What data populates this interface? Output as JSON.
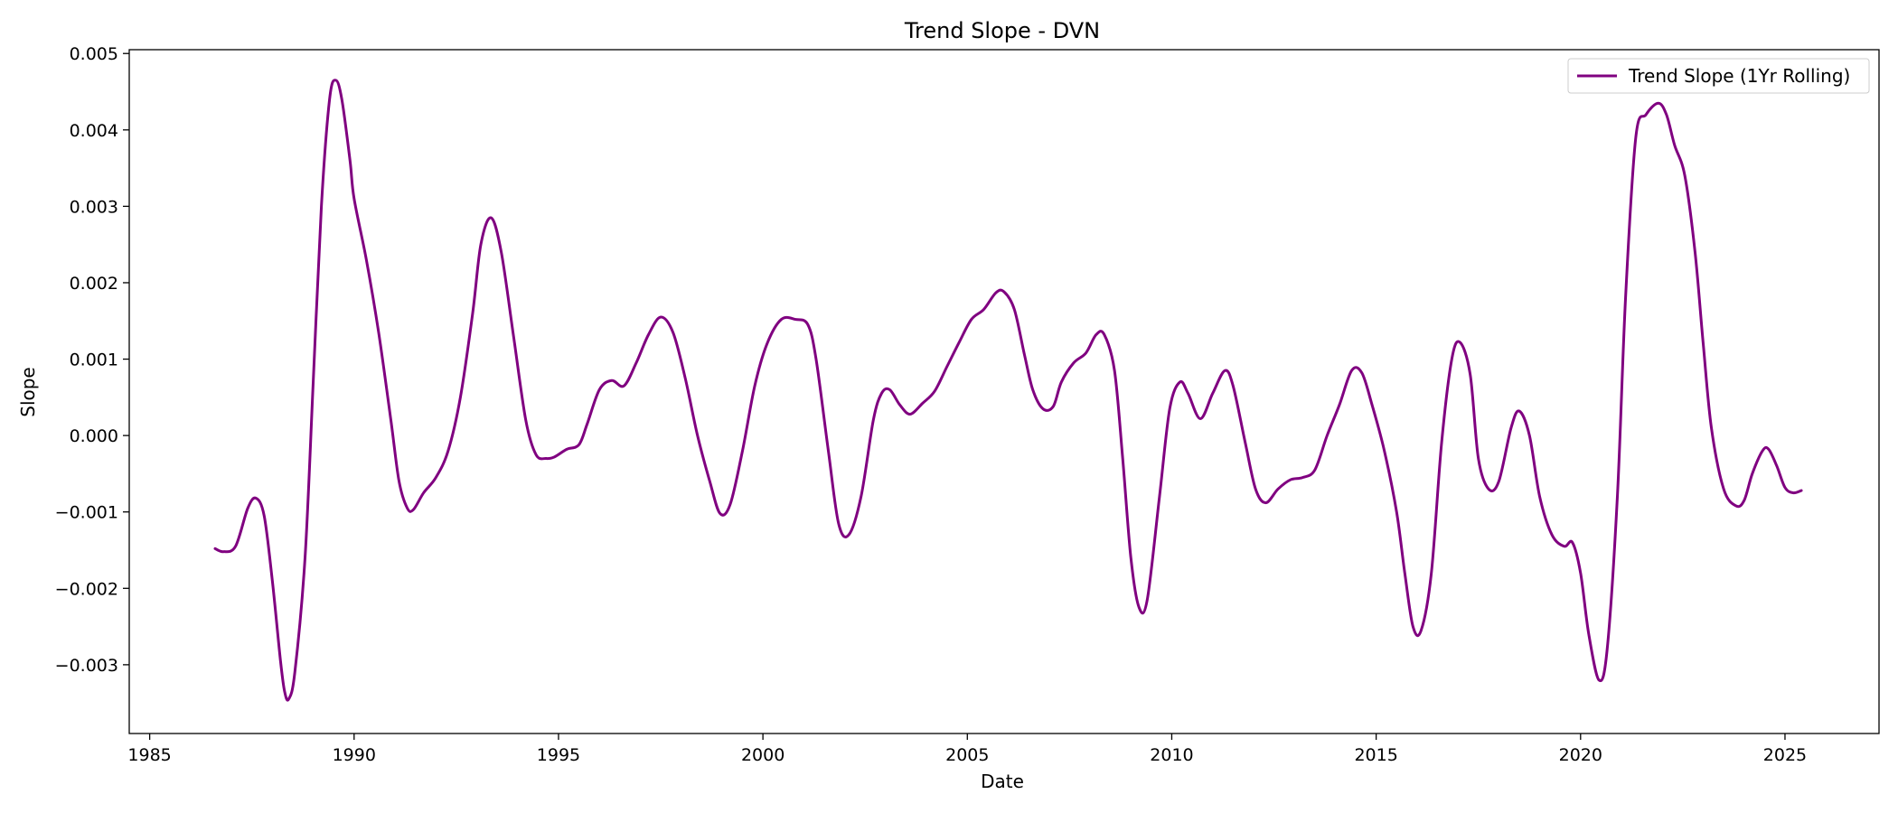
{
  "chart_data": {
    "type": "line",
    "title": "Trend Slope - DVN",
    "xlabel": "Date",
    "ylabel": "Slope",
    "xlim": [
      1984.5,
      2027.3
    ],
    "ylim": [
      -0.0039,
      0.00505
    ],
    "x_ticks": [
      1985,
      1990,
      1995,
      2000,
      2005,
      2010,
      2015,
      2020,
      2025
    ],
    "y_ticks": [
      {
        "value": -0.003,
        "label": "−0.003"
      },
      {
        "value": -0.002,
        "label": "−0.002"
      },
      {
        "value": -0.001,
        "label": "−0.001"
      },
      {
        "value": 0.0,
        "label": "0.000"
      },
      {
        "value": 0.001,
        "label": "0.001"
      },
      {
        "value": 0.002,
        "label": "0.002"
      },
      {
        "value": 0.003,
        "label": "0.003"
      },
      {
        "value": 0.004,
        "label": "0.004"
      },
      {
        "value": 0.005,
        "label": "0.005"
      }
    ],
    "grid": false,
    "legend_position": "top-right",
    "series": [
      {
        "name": "Trend Slope (1Yr Rolling)",
        "color": "#800080",
        "points": [
          [
            1986.6,
            -0.00148
          ],
          [
            1986.8,
            -0.00152
          ],
          [
            1987.1,
            -0.00145
          ],
          [
            1987.4,
            -0.00095
          ],
          [
            1987.6,
            -0.00082
          ],
          [
            1987.8,
            -0.00105
          ],
          [
            1988.0,
            -0.0019
          ],
          [
            1988.2,
            -0.00295
          ],
          [
            1988.3,
            -0.00335
          ],
          [
            1988.4,
            -0.00345
          ],
          [
            1988.55,
            -0.0031
          ],
          [
            1988.8,
            -0.0016
          ],
          [
            1989.0,
            0.0007
          ],
          [
            1989.2,
            0.003
          ],
          [
            1989.4,
            0.0044
          ],
          [
            1989.55,
            0.00465
          ],
          [
            1989.7,
            0.0044
          ],
          [
            1989.9,
            0.0036
          ],
          [
            1990.0,
            0.0031
          ],
          [
            1990.3,
            0.0023
          ],
          [
            1990.6,
            0.00135
          ],
          [
            1990.9,
            0.0002
          ],
          [
            1991.1,
            -0.0006
          ],
          [
            1991.3,
            -0.00095
          ],
          [
            1991.45,
            -0.00097
          ],
          [
            1991.7,
            -0.00075
          ],
          [
            1992.0,
            -0.00055
          ],
          [
            1992.3,
            -0.0002
          ],
          [
            1992.6,
            0.0005
          ],
          [
            1992.9,
            0.0016
          ],
          [
            1993.1,
            0.0025
          ],
          [
            1993.35,
            0.00285
          ],
          [
            1993.6,
            0.0024
          ],
          [
            1993.9,
            0.0013
          ],
          [
            1994.2,
            0.0002
          ],
          [
            1994.45,
            -0.00025
          ],
          [
            1994.7,
            -0.0003
          ],
          [
            1994.9,
            -0.00028
          ],
          [
            1995.2,
            -0.00018
          ],
          [
            1995.5,
            -0.00012
          ],
          [
            1995.7,
            0.00015
          ],
          [
            1996.0,
            0.0006
          ],
          [
            1996.3,
            0.00072
          ],
          [
            1996.6,
            0.00065
          ],
          [
            1996.9,
            0.00095
          ],
          [
            1997.2,
            0.00132
          ],
          [
            1997.5,
            0.00155
          ],
          [
            1997.8,
            0.00135
          ],
          [
            1998.1,
            0.00075
          ],
          [
            1998.4,
            0.0
          ],
          [
            1998.7,
            -0.0006
          ],
          [
            1998.95,
            -0.00102
          ],
          [
            1999.2,
            -0.0009
          ],
          [
            1999.5,
            -0.0002
          ],
          [
            1999.8,
            0.00065
          ],
          [
            2000.1,
            0.0012
          ],
          [
            2000.45,
            0.00152
          ],
          [
            2000.8,
            0.00152
          ],
          [
            2001.1,
            0.00145
          ],
          [
            2001.3,
            0.001
          ],
          [
            2001.6,
            -0.0002
          ],
          [
            2001.85,
            -0.00115
          ],
          [
            2002.1,
            -0.0013
          ],
          [
            2002.4,
            -0.0008
          ],
          [
            2002.7,
            0.0002
          ],
          [
            2002.9,
            0.00055
          ],
          [
            2003.1,
            0.0006
          ],
          [
            2003.35,
            0.0004
          ],
          [
            2003.6,
            0.00028
          ],
          [
            2003.9,
            0.00042
          ],
          [
            2004.2,
            0.00058
          ],
          [
            2004.5,
            0.0009
          ],
          [
            2004.8,
            0.00122
          ],
          [
            2005.1,
            0.00152
          ],
          [
            2005.4,
            0.00165
          ],
          [
            2005.7,
            0.00187
          ],
          [
            2005.9,
            0.00188
          ],
          [
            2006.15,
            0.00165
          ],
          [
            2006.4,
            0.00105
          ],
          [
            2006.6,
            0.0006
          ],
          [
            2006.85,
            0.00035
          ],
          [
            2007.1,
            0.00038
          ],
          [
            2007.3,
            0.0007
          ],
          [
            2007.6,
            0.00095
          ],
          [
            2007.9,
            0.00108
          ],
          [
            2008.15,
            0.00132
          ],
          [
            2008.35,
            0.00132
          ],
          [
            2008.6,
            0.00085
          ],
          [
            2008.8,
            -0.0003
          ],
          [
            2009.0,
            -0.0016
          ],
          [
            2009.2,
            -0.00225
          ],
          [
            2009.4,
            -0.00215
          ],
          [
            2009.7,
            -0.0008
          ],
          [
            2009.95,
            0.00035
          ],
          [
            2010.2,
            0.0007
          ],
          [
            2010.4,
            0.00055
          ],
          [
            2010.7,
            0.00022
          ],
          [
            2011.0,
            0.00055
          ],
          [
            2011.3,
            0.00085
          ],
          [
            2011.5,
            0.00065
          ],
          [
            2011.8,
            -0.0001
          ],
          [
            2012.05,
            -0.0007
          ],
          [
            2012.3,
            -0.00088
          ],
          [
            2012.6,
            -0.0007
          ],
          [
            2012.9,
            -0.00058
          ],
          [
            2013.2,
            -0.00055
          ],
          [
            2013.5,
            -0.00045
          ],
          [
            2013.8,
            0.0
          ],
          [
            2014.1,
            0.0004
          ],
          [
            2014.4,
            0.00085
          ],
          [
            2014.65,
            0.00082
          ],
          [
            2014.9,
            0.0004
          ],
          [
            2015.2,
            -0.0002
          ],
          [
            2015.5,
            -0.001
          ],
          [
            2015.7,
            -0.0018
          ],
          [
            2015.9,
            -0.0025
          ],
          [
            2016.1,
            -0.00255
          ],
          [
            2016.35,
            -0.0018
          ],
          [
            2016.6,
            -0.0001
          ],
          [
            2016.85,
            0.001
          ],
          [
            2017.05,
            0.00122
          ],
          [
            2017.3,
            0.0008
          ],
          [
            2017.5,
            -0.0003
          ],
          [
            2017.75,
            -0.0007
          ],
          [
            2018.0,
            -0.0006
          ],
          [
            2018.3,
            0.0001
          ],
          [
            2018.5,
            0.00032
          ],
          [
            2018.75,
            0.0
          ],
          [
            2019.0,
            -0.0008
          ],
          [
            2019.3,
            -0.0013
          ],
          [
            2019.6,
            -0.00145
          ],
          [
            2019.8,
            -0.0014
          ],
          [
            2020.0,
            -0.0018
          ],
          [
            2020.2,
            -0.0026
          ],
          [
            2020.45,
            -0.0032
          ],
          [
            2020.65,
            -0.0028
          ],
          [
            2020.9,
            -0.0008
          ],
          [
            2021.1,
            0.0018
          ],
          [
            2021.35,
            0.0039
          ],
          [
            2021.6,
            0.0042
          ],
          [
            2021.9,
            0.00435
          ],
          [
            2022.1,
            0.0042
          ],
          [
            2022.3,
            0.0038
          ],
          [
            2022.55,
            0.0034
          ],
          [
            2022.8,
            0.0024
          ],
          [
            2023.0,
            0.0012
          ],
          [
            2023.2,
            0.0001
          ],
          [
            2023.5,
            -0.0007
          ],
          [
            2023.8,
            -0.00092
          ],
          [
            2024.0,
            -0.00085
          ],
          [
            2024.2,
            -0.0005
          ],
          [
            2024.45,
            -0.0002
          ],
          [
            2024.6,
            -0.00018
          ],
          [
            2024.8,
            -0.0004
          ],
          [
            2025.0,
            -0.00068
          ],
          [
            2025.2,
            -0.00075
          ],
          [
            2025.4,
            -0.00072
          ]
        ]
      }
    ]
  }
}
